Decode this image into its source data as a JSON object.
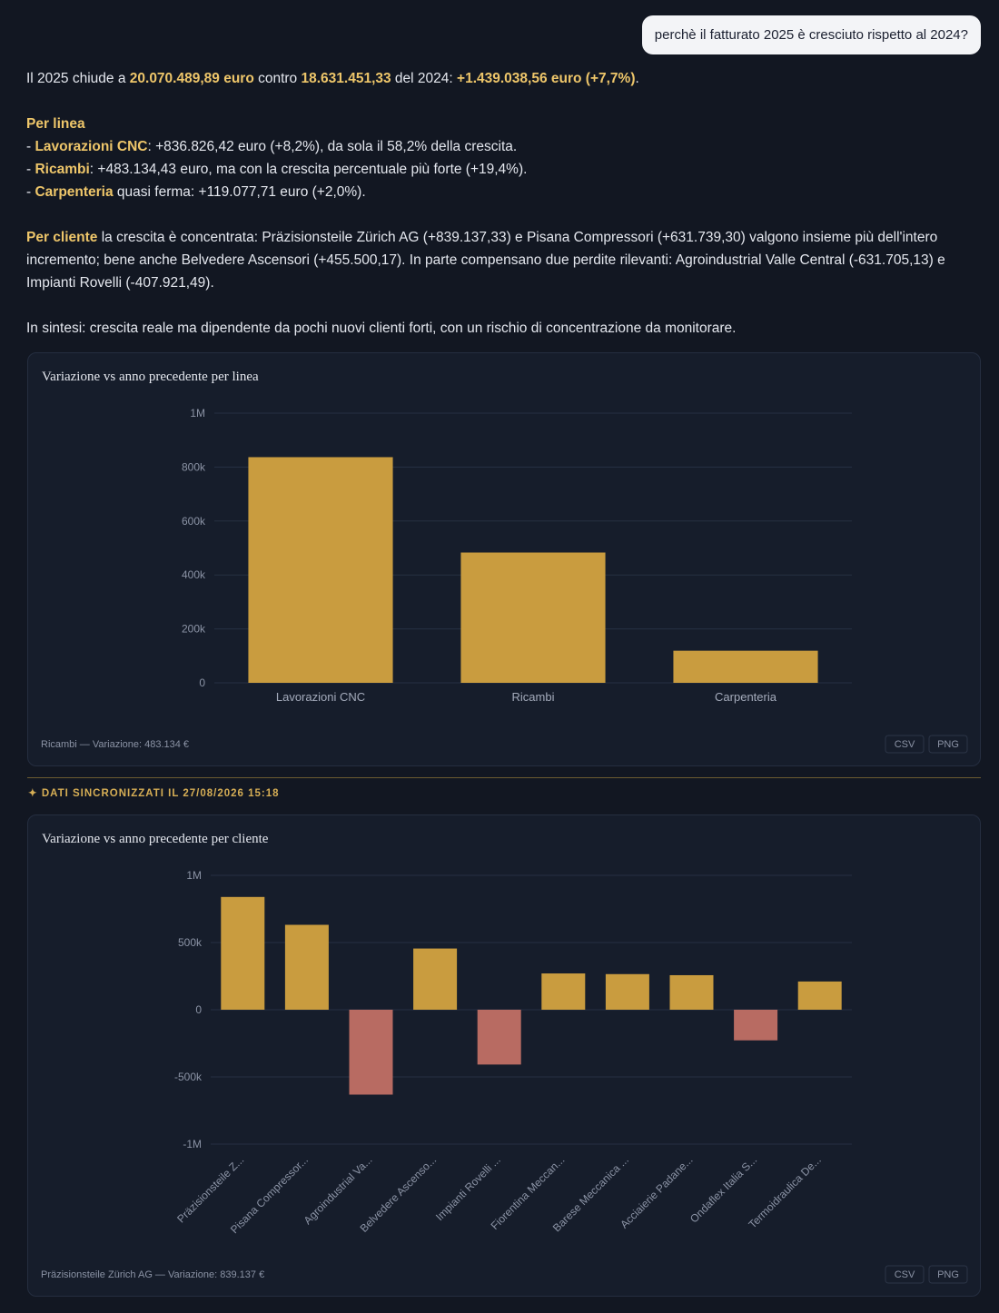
{
  "user_message": "perchè il fatturato 2025 è cresciuto rispetto al 2024?",
  "answer": {
    "paragraphs": [
      [
        [
          "Il 2025 chiude a ",
          {
            "strong": "20.070.489,89 euro"
          },
          " contro ",
          {
            "strong": "18.631.451,33"
          },
          " del 2024: ",
          {
            "strong": "+1.439.038,56 euro (+7,7%)"
          },
          "."
        ]
      ],
      [
        [
          {
            "strong": "Per linea"
          }
        ],
        [
          "- ",
          {
            "strong": "Lavorazioni CNC"
          },
          ": +836.826,42 euro (+8,2%), da sola il 58,2% della crescita."
        ],
        [
          "- ",
          {
            "strong": "Ricambi"
          },
          ": +483.134,43 euro, ma con la crescita percentuale più forte (+19,4%)."
        ],
        [
          "- ",
          {
            "strong": "Carpenteria"
          },
          " quasi ferma: +119.077,71 euro (+2,0%)."
        ]
      ],
      [
        [
          {
            "strong": "Per cliente"
          },
          " la crescita è concentrata: Präzisionsteile Zürich AG (+839.137,33) e Pisana Compressori (+631.739,30) valgono insieme più dell'intero incremento; bene anche Belvedere Ascensori (+455.500,17). In parte compensano due perdite rilevanti: Agroindustrial Valle Central (-631.705,13) e Impianti Rovelli (-407.921,49)."
        ]
      ],
      [
        [
          "In sintesi: crescita reale ma dipendente da pochi nuovi clienti forti, con un rischio di concentrazione da monitorare."
        ]
      ]
    ]
  },
  "sync_note": "DATI SINCRONIZZATI IL 27/08/2026 15:18",
  "chart_data": [
    {
      "type": "bar",
      "title": "Variazione vs anno precedente per linea",
      "categories": [
        "Lavorazioni CNC",
        "Ricambi",
        "Carpenteria"
      ],
      "values": [
        836826.42,
        483134.43,
        119077.71
      ],
      "color": "#c99c3f",
      "ylim": [
        0,
        1000000
      ],
      "yticks": [
        0,
        {
          "value": 200000,
          "label": "200k"
        },
        {
          "value": 400000,
          "label": "400k"
        },
        {
          "value": 600000,
          "label": "600k"
        },
        {
          "value": 800000,
          "label": "800k"
        },
        {
          "value": 1000000,
          "label": "1M"
        }
      ],
      "grid": true,
      "footer": "Ricambi — Variazione: 483.134 €",
      "buttons": [
        "CSV",
        "PNG"
      ]
    },
    {
      "type": "bar",
      "title": "Variazione vs anno precedente per cliente",
      "categories": [
        "Präzisionsteile Z...",
        "Pisana Compressor...",
        "Agroindustrial Va...",
        "Belvedere Ascenso...",
        "Impianti Rovelli ...",
        "Fiorentina Meccan...",
        "Barese Meccanica ...",
        "Acciaierie Padane...",
        "Ondaflex Italia S...",
        "Termoidraulica De..."
      ],
      "values": [
        839137.33,
        631739.3,
        -631705.13,
        455500.17,
        -407921.49,
        270000,
        265000,
        257000,
        -228000,
        210000
      ],
      "color": "#c99c3f",
      "negative_color": "#b86b62",
      "ylim": [
        -1000000,
        1000000
      ],
      "yticks": [
        {
          "value": -1000000,
          "label": "-1M"
        },
        {
          "value": -500000,
          "label": "-500k"
        },
        0,
        {
          "value": 500000,
          "label": "500k"
        },
        {
          "value": 1000000,
          "label": "1M"
        }
      ],
      "grid": true,
      "rotate_labels": true,
      "footer": "Präzisionsteile Zürich AG — Variazione: 839.137 €",
      "buttons": [
        "CSV",
        "PNG"
      ]
    }
  ]
}
